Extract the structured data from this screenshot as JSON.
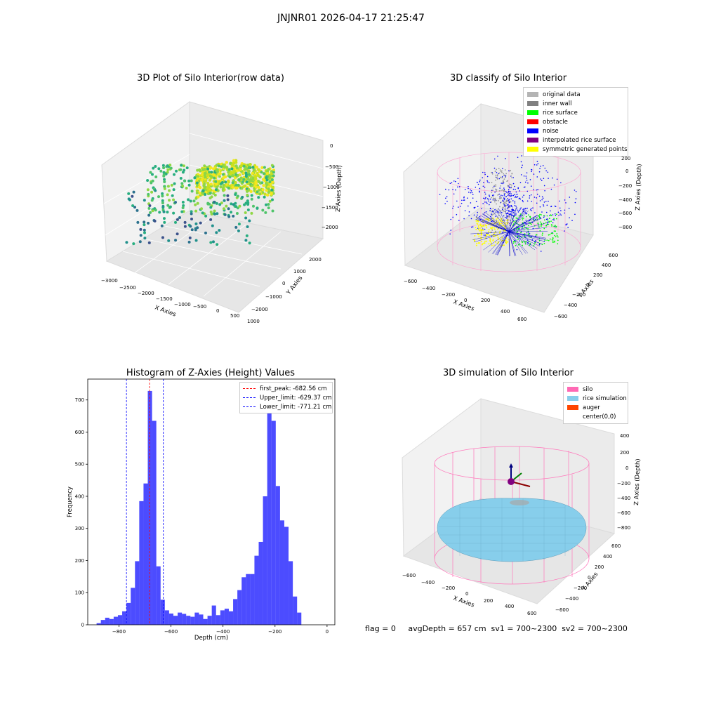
{
  "suptitle": "JNJNR01 2026-04-17 21:25:47",
  "panel_raw": {
    "title": "3D Plot of Silo Interior(row data)",
    "xlabel": "X Axies",
    "ylabel": "Y Axies",
    "zlabel": "Z Axies (Depth)",
    "xticks": [
      "−3000",
      "−2500",
      "−2000",
      "−1500",
      "−1000",
      "−500",
      "0",
      "500",
      "1000"
    ],
    "yticks": [
      "2000",
      "1000",
      "0",
      "−1000",
      "−2000"
    ],
    "zticks": [
      "0",
      "−500",
      "−1000",
      "−1500",
      "−2000"
    ]
  },
  "panel_classify": {
    "title": "3D classify of Silo Interior",
    "xlabel": "X Axies",
    "ylabel": "Y Axies",
    "zlabel": "Z Axies (Depth)",
    "xticks": [
      "−600",
      "−400",
      "−200",
      "0",
      "200",
      "400",
      "600"
    ],
    "yticks": [
      "600",
      "400",
      "200",
      "0",
      "−200",
      "−400",
      "−600"
    ],
    "zticks": [
      "200",
      "0",
      "−200",
      "−400",
      "−600",
      "−800"
    ],
    "legend": [
      {
        "label": "original data",
        "color": "#b4b4b4"
      },
      {
        "label": "inner wall",
        "color": "#808080"
      },
      {
        "label": "rice surface",
        "color": "#00ff00"
      },
      {
        "label": "obstacle",
        "color": "#ff0000"
      },
      {
        "label": "noise",
        "color": "#0000ff"
      },
      {
        "label": "interpolated rice surface",
        "color": "#800080"
      },
      {
        "label": "symmetric generated points",
        "color": "#ffff00"
      }
    ]
  },
  "panel_sim": {
    "title": "3D simulation of Silo Interior",
    "xlabel": "X Axies",
    "ylabel": "Y Axies",
    "zlabel": "Z Axies (Depth)",
    "xticks": [
      "−600",
      "−400",
      "−200",
      "0",
      "200",
      "400",
      "600"
    ],
    "yticks": [
      "600",
      "400",
      "200",
      "0",
      "−200",
      "−400",
      "−600"
    ],
    "zticks": [
      "400",
      "200",
      "0",
      "−200",
      "−400",
      "−600",
      "−800"
    ],
    "legend": [
      {
        "label": "silo",
        "color": "#ff69b4"
      },
      {
        "label": "rice simulation",
        "color": "#87ceeb"
      },
      {
        "label": "auger",
        "color": "#ff4500"
      },
      {
        "label": "center(0,0)",
        "color": ""
      }
    ]
  },
  "footer": "flag = 0     avgDepth = 657 cm  sv1 = 700~2300  sv2 = 700~2300",
  "chart_data": [
    {
      "type": "bar",
      "title": "Histogram of Z-Axies (Height) Values",
      "xlabel": "Depth (cm)",
      "ylabel": "Frequency",
      "xlim": [
        -920,
        30
      ],
      "ylim": [
        0,
        765
      ],
      "xticks": [
        -800,
        -600,
        -400,
        -200,
        0
      ],
      "yticks": [
        0,
        100,
        200,
        300,
        400,
        500,
        600,
        700
      ],
      "bin_width": 16.4,
      "bins_start": -886,
      "values": [
        5,
        15,
        22,
        18,
        25,
        30,
        42,
        68,
        115,
        198,
        385,
        440,
        728,
        635,
        182,
        78,
        45,
        35,
        28,
        38,
        34,
        28,
        25,
        38,
        32,
        18,
        28,
        60,
        30,
        45,
        50,
        42,
        80,
        108,
        148,
        158,
        158,
        215,
        258,
        400,
        720,
        635,
        432,
        325,
        305,
        198,
        88,
        38
      ],
      "color": "#0000ff",
      "lines": [
        {
          "name": "first_peak: -682.56 cm",
          "x": -682.56,
          "color": "#ff0000"
        },
        {
          "name": "Upper_limit: -629.37 cm",
          "x": -629.37,
          "color": "#0000ff"
        },
        {
          "name": "Lower_limit: -771.21 cm",
          "x": -771.21,
          "color": "#0000ff"
        }
      ],
      "legend_position": "top-right"
    }
  ]
}
